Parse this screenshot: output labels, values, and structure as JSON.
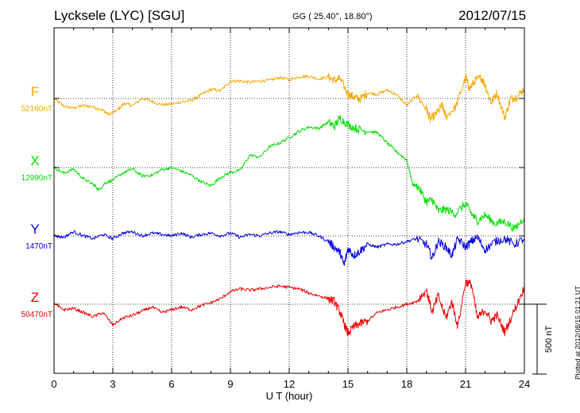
{
  "header": {
    "title": "Lycksele (LYC)  [SGU]",
    "coords": "GG ( 25.40°,  18.80°)",
    "date": "2012/07/15"
  },
  "footer_note": "Plotted at 2012/08/15 01:21  UT",
  "colors": {
    "F": "#f5a800",
    "X": "#00dd00",
    "Y": "#0000dd",
    "Z": "#ee0000",
    "axes": "#000000"
  },
  "chart_data": {
    "type": "line",
    "xlabel": "U T (hour)",
    "xlim": [
      0,
      24
    ],
    "xticks": [
      0,
      3,
      6,
      9,
      12,
      15,
      18,
      21,
      24
    ],
    "scale_bar_label": "500 nT",
    "series": [
      {
        "name": "F",
        "baseline_label": "52160nT",
        "color": "#f5a800",
        "t": [
          0,
          0.5,
          1,
          1.5,
          2,
          2.5,
          2.8,
          3.2,
          3.6,
          4,
          4.5,
          5,
          5.5,
          6,
          6.5,
          7,
          7.5,
          8,
          8.5,
          9,
          9.5,
          10,
          10.5,
          11,
          11.5,
          12,
          12.5,
          13,
          13.5,
          14,
          14.3,
          14.6,
          15,
          15.3,
          15.6,
          16,
          16.5,
          17,
          17.5,
          18,
          18.5,
          19,
          19.2,
          19.5,
          19.8,
          20,
          20.5,
          21,
          21.2,
          21.5,
          21.8,
          22,
          22.3,
          22.6,
          23,
          23.3,
          23.6,
          24
        ],
        "dB": [
          0,
          -55,
          -70,
          -50,
          -60,
          -85,
          -115,
          -85,
          -35,
          -50,
          0,
          -20,
          -45,
          -40,
          -25,
          -15,
          25,
          65,
          55,
          125,
          125,
          115,
          125,
          130,
          150,
          135,
          155,
          160,
          140,
          155,
          130,
          140,
          30,
          10,
          -5,
          40,
          30,
          60,
          25,
          -50,
          25,
          -75,
          -150,
          -110,
          -50,
          -130,
          -60,
          150,
          70,
          130,
          150,
          95,
          -30,
          40,
          -140,
          0,
          10,
          70
        ]
      },
      {
        "name": "X",
        "baseline_label": "12990nT",
        "color": "#00dd00",
        "t": [
          0,
          0.5,
          1,
          1.5,
          2,
          2.3,
          2.6,
          3,
          3.5,
          4,
          4.5,
          5,
          5.5,
          6,
          6.5,
          7,
          7.5,
          8,
          8.5,
          9,
          9.5,
          10,
          10.5,
          11,
          11.5,
          12,
          12.5,
          13,
          13.5,
          14,
          14.3,
          14.6,
          15,
          15.5,
          16,
          16.5,
          17,
          17.5,
          18,
          18.3,
          18.6,
          19,
          19.3,
          19.6,
          20,
          20.5,
          21,
          21.3,
          21.6,
          22,
          22.5,
          23,
          23.5,
          24
        ],
        "dB": [
          0,
          -40,
          -10,
          -80,
          -120,
          -160,
          -110,
          -90,
          -40,
          -10,
          -60,
          -55,
          -15,
          0,
          -25,
          -55,
          -100,
          -130,
          -70,
          -35,
          -20,
          90,
          75,
          150,
          175,
          215,
          260,
          290,
          280,
          325,
          295,
          355,
          305,
          275,
          260,
          250,
          175,
          110,
          55,
          -120,
          -140,
          -245,
          -230,
          -310,
          -300,
          -330,
          -255,
          -330,
          -380,
          -340,
          -400,
          -385,
          -440,
          -355
        ]
      },
      {
        "name": "Y",
        "baseline_label": "1470nT",
        "color": "#0000dd",
        "t": [
          0,
          0.5,
          1,
          1.5,
          2,
          2.5,
          3,
          3.5,
          4,
          4.5,
          5,
          5.5,
          6,
          6.5,
          7,
          7.5,
          8,
          8.5,
          9,
          9.5,
          10,
          10.5,
          11,
          11.5,
          12,
          12.5,
          13,
          13.5,
          14,
          14.3,
          14.6,
          14.8,
          15,
          15.3,
          15.6,
          16,
          16.5,
          17,
          17.5,
          18,
          18.5,
          19,
          19.3,
          19.6,
          20,
          20.3,
          20.6,
          21,
          21.3,
          21.6,
          22,
          22.5,
          23,
          23.5,
          24
        ],
        "dB": [
          0,
          -10,
          30,
          0,
          -20,
          10,
          -20,
          20,
          30,
          0,
          20,
          10,
          0,
          20,
          -10,
          10,
          20,
          0,
          20,
          -10,
          10,
          0,
          20,
          30,
          10,
          25,
          25,
          0,
          -40,
          -80,
          -120,
          -210,
          -90,
          -140,
          -110,
          -60,
          -80,
          -60,
          -60,
          -40,
          -20,
          -60,
          -160,
          -40,
          -80,
          -140,
          -20,
          -80,
          -40,
          -10,
          -100,
          -40,
          -20,
          -60,
          -20
        ]
      },
      {
        "name": "Z",
        "baseline_label": "50470nT",
        "color": "#ee0000",
        "t": [
          0,
          0.5,
          1,
          1.5,
          2,
          2.5,
          3,
          3.5,
          4,
          4.5,
          5,
          5.5,
          6,
          6.5,
          7,
          7.5,
          8,
          8.5,
          9,
          9.5,
          10,
          10.5,
          11,
          11.5,
          12,
          12.5,
          13,
          13.5,
          14,
          14.3,
          14.6,
          14.8,
          15,
          15.3,
          15.6,
          16,
          16.5,
          17,
          17.5,
          18,
          18.5,
          19,
          19.3,
          19.6,
          20,
          20.3,
          20.6,
          21,
          21.3,
          21.6,
          22,
          22.3,
          22.6,
          23,
          23.5,
          24
        ],
        "dB": [
          0,
          -40,
          -30,
          -60,
          -90,
          -60,
          -150,
          -100,
          -80,
          -50,
          -20,
          -60,
          -40,
          -20,
          -40,
          -10,
          10,
          40,
          90,
          110,
          100,
          110,
          120,
          130,
          120,
          110,
          80,
          60,
          40,
          20,
          -60,
          -140,
          -210,
          -160,
          -140,
          -120,
          -60,
          -40,
          -20,
          0,
          20,
          100,
          -60,
          60,
          -100,
          20,
          -160,
          160,
          140,
          -100,
          -40,
          -120,
          -80,
          -200,
          -40,
          120
        ]
      }
    ]
  }
}
